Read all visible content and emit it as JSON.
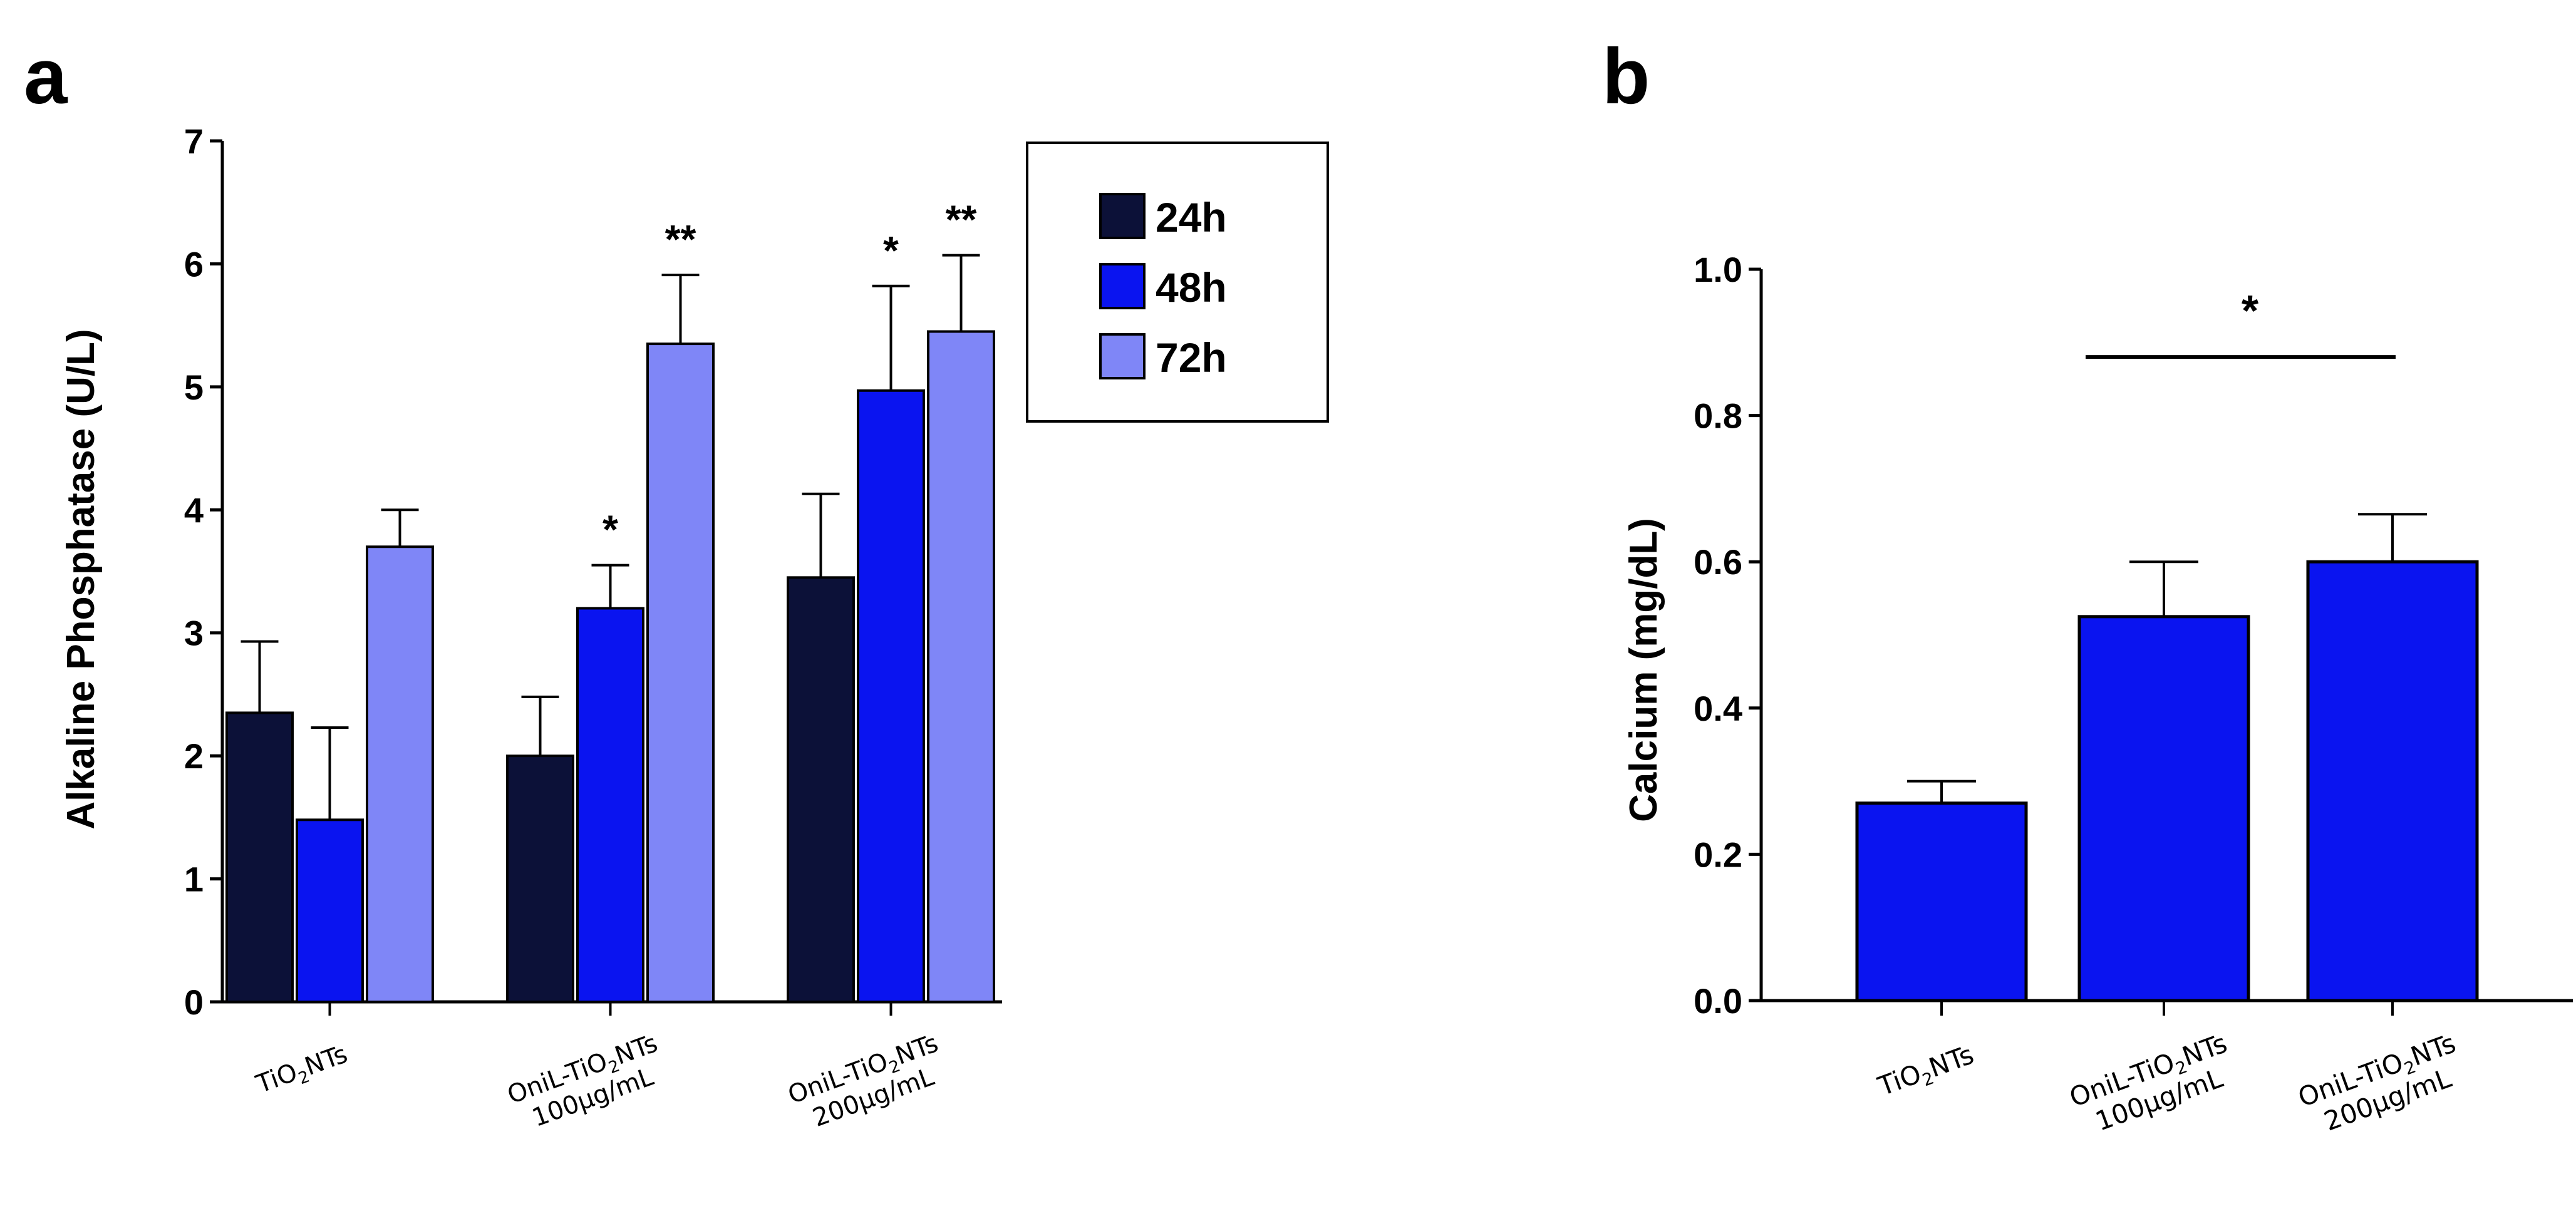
{
  "chart_data": [
    {
      "panel_label": "a",
      "type": "bar",
      "ylabel": "Alkaline Phosphatase (U/L)",
      "ylim": [
        0,
        7
      ],
      "yticks": [
        "0",
        "1",
        "2",
        "3",
        "4",
        "5",
        "6",
        "7"
      ],
      "categories": [
        {
          "line1": "TiO2NTs",
          "line1_parts": [
            "TiO",
            "2",
            "NTs"
          ],
          "line2": ""
        },
        {
          "line1": "OniL-TiO2NTs",
          "line1_parts": [
            "OniL-TiO",
            "2",
            "NTs"
          ],
          "line2": "100µg/mL"
        },
        {
          "line1": "OniL-TiO2NTs",
          "line1_parts": [
            "OniL-TiO",
            "2",
            "NTs"
          ],
          "line2": "200µg/mL"
        }
      ],
      "series": [
        {
          "name": "24h",
          "color": "#0c1138",
          "values": [
            2.35,
            2.0,
            3.45
          ],
          "errors": [
            0.58,
            0.48,
            0.68
          ],
          "marks": [
            "",
            "",
            ""
          ]
        },
        {
          "name": "48h",
          "color": "#0a14f0",
          "values": [
            1.48,
            3.2,
            4.97
          ],
          "errors": [
            0.75,
            0.35,
            0.85
          ],
          "marks": [
            "",
            "*",
            "*"
          ]
        },
        {
          "name": "72h",
          "color": "#7f86f7",
          "values": [
            3.7,
            5.35,
            5.45
          ],
          "errors": [
            0.3,
            0.56,
            0.62
          ],
          "marks": [
            "",
            "**",
            "**"
          ]
        }
      ],
      "legend": {
        "placement": "top-right",
        "entries": [
          "24h",
          "48h",
          "72h"
        ]
      }
    },
    {
      "panel_label": "b",
      "type": "bar",
      "ylabel": "Calcium (mg/dL)",
      "ylim": [
        0,
        1.0
      ],
      "yticks": [
        "0.0",
        "0.2",
        "0.4",
        "0.6",
        "0.8",
        "1.0"
      ],
      "categories": [
        {
          "line1": "TiO2NTs",
          "line1_parts": [
            "TiO",
            "2",
            "NTs"
          ],
          "line2": ""
        },
        {
          "line1": "OniL-TiO2NTs",
          "line1_parts": [
            "OniL-TiO",
            "2",
            "NTs"
          ],
          "line2": "100µg/mL"
        },
        {
          "line1": "OniL-TiO2NTs",
          "line1_parts": [
            "OniL-TiO",
            "2",
            "NTs"
          ],
          "line2": "200µg/mL"
        }
      ],
      "series": [
        {
          "color": "#0a14f0",
          "values": [
            0.27,
            0.525,
            0.6
          ],
          "errors": [
            0.03,
            0.075,
            0.065
          ]
        }
      ],
      "significance": {
        "from_category": 1,
        "to_category": 2,
        "y": 0.88,
        "mark": "*"
      }
    }
  ]
}
